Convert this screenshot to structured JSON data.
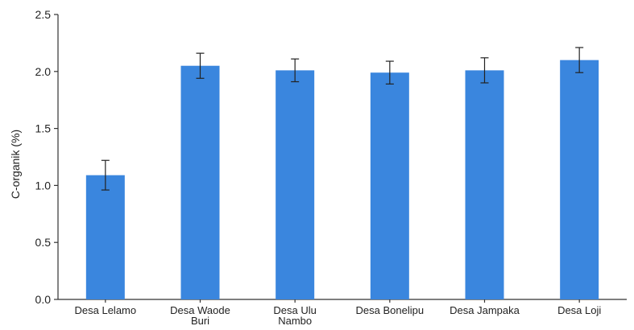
{
  "chart_data": {
    "type": "bar",
    "title": "",
    "xlabel": "",
    "ylabel": "C-organik (%)",
    "ylim": [
      0,
      2.5
    ],
    "yticks": [
      "0.0",
      "0.5",
      "1.0",
      "1.5",
      "2.0",
      "2.5"
    ],
    "grid": false,
    "legend": "none",
    "categories": [
      [
        "Desa Lelamo"
      ],
      [
        "Desa Waode",
        "Buri"
      ],
      [
        "Desa Ulu",
        "Nambo"
      ],
      [
        "Desa Bonelipu"
      ],
      [
        "Desa Jampaka"
      ],
      [
        "Desa Loji"
      ]
    ],
    "values": [
      1.09,
      2.05,
      2.01,
      1.99,
      2.01,
      2.1
    ],
    "errors": [
      0.13,
      0.11,
      0.1,
      0.1,
      0.11,
      0.11
    ],
    "bar_color": "#3a86de",
    "axis_color": "#333333"
  }
}
